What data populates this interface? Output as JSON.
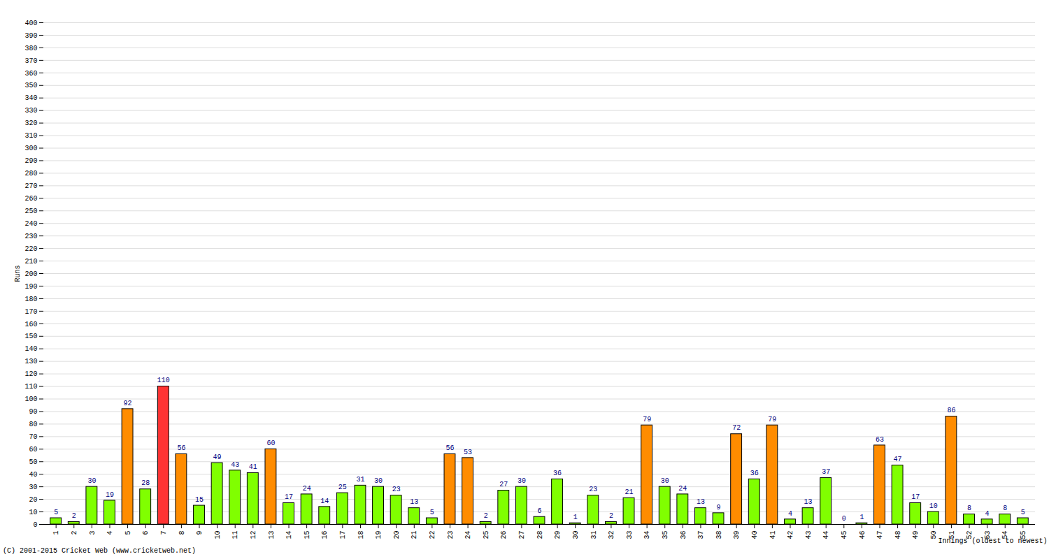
{
  "chart_data": {
    "type": "bar",
    "xlabel": "Innings (oldest to newest)",
    "ylabel": "Runs",
    "caption": "(C) 2001-2015 Cricket Web (www.cricketweb.net)",
    "categories": [
      "1",
      "2",
      "3",
      "4",
      "5",
      "6",
      "7",
      "8",
      "9",
      "10",
      "11",
      "12",
      "13",
      "14",
      "15",
      "16",
      "17",
      "18",
      "19",
      "20",
      "21",
      "22",
      "23",
      "24",
      "25",
      "26",
      "27",
      "28",
      "29",
      "30",
      "31",
      "32",
      "33",
      "34",
      "35",
      "36",
      "37",
      "38",
      "39",
      "40",
      "41",
      "42",
      "43",
      "44",
      "45",
      "46",
      "47",
      "48",
      "49",
      "50",
      "51",
      "52",
      "53",
      "54",
      "55"
    ],
    "values": [
      5,
      2,
      30,
      19,
      92,
      28,
      110,
      56,
      15,
      49,
      43,
      41,
      60,
      17,
      24,
      14,
      25,
      31,
      30,
      23,
      13,
      5,
      56,
      53,
      2,
      27,
      30,
      6,
      36,
      1,
      23,
      2,
      21,
      79,
      30,
      24,
      13,
      9,
      72,
      36,
      79,
      4,
      13,
      37,
      0,
      1,
      63,
      47,
      17,
      10,
      86,
      8,
      4,
      8,
      5
    ],
    "colors": [
      "#80ff00",
      "#80ff00",
      "#80ff00",
      "#80ff00",
      "#ff8c00",
      "#80ff00",
      "#ff3333",
      "#ff8c00",
      "#80ff00",
      "#80ff00",
      "#80ff00",
      "#80ff00",
      "#ff8c00",
      "#80ff00",
      "#80ff00",
      "#80ff00",
      "#80ff00",
      "#80ff00",
      "#80ff00",
      "#80ff00",
      "#80ff00",
      "#80ff00",
      "#ff8c00",
      "#ff8c00",
      "#80ff00",
      "#80ff00",
      "#80ff00",
      "#80ff00",
      "#80ff00",
      "#80ff00",
      "#80ff00",
      "#80ff00",
      "#80ff00",
      "#ff8c00",
      "#80ff00",
      "#80ff00",
      "#80ff00",
      "#80ff00",
      "#ff8c00",
      "#80ff00",
      "#ff8c00",
      "#80ff00",
      "#80ff00",
      "#80ff00",
      "#80ff00",
      "#80ff00",
      "#ff8c00",
      "#80ff00",
      "#80ff00",
      "#80ff00",
      "#ff8c00",
      "#80ff00",
      "#80ff00",
      "#80ff00",
      "#80ff00"
    ],
    "ylim": [
      0,
      400
    ],
    "yticks": [
      0,
      10,
      20,
      30,
      40,
      50,
      60,
      70,
      80,
      90,
      100,
      110,
      120,
      130,
      140,
      150,
      160,
      170,
      180,
      190,
      200,
      210,
      220,
      230,
      240,
      250,
      260,
      270,
      280,
      290,
      300,
      310,
      320,
      330,
      340,
      350,
      360,
      370,
      380,
      390,
      400
    ],
    "grid": true,
    "data_labels": true
  }
}
